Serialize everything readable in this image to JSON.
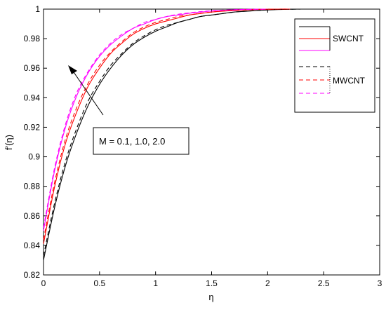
{
  "chart_data": {
    "type": "line",
    "title": "",
    "xlabel": "η",
    "ylabel": "f′(η)",
    "xlim": [
      0,
      3
    ],
    "ylim": [
      0.82,
      1.0
    ],
    "xticks": [
      0,
      0.5,
      1,
      1.5,
      2,
      2.5,
      3
    ],
    "xtick_labels": [
      "0",
      "0.5",
      "1",
      "1.5",
      "2",
      "2.5",
      "3"
    ],
    "yticks": [
      0.82,
      0.84,
      0.86,
      0.88,
      0.9,
      0.92,
      0.94,
      0.96,
      0.98,
      1.0
    ],
    "ytick_labels": [
      "0.82",
      "0.84",
      "0.86",
      "0.88",
      "0.9",
      "0.92",
      "0.94",
      "0.96",
      "0.98",
      "1"
    ],
    "grid": false,
    "legend_position": "top-right",
    "legend_entries": [
      "SWCNT",
      "MWCNT"
    ],
    "annotation": "M = 0.1, 1.0, 2.0",
    "series": [
      {
        "group": "SWCNT",
        "style": "solid",
        "color": "#000000",
        "M": 0.1,
        "x": [
          0,
          0.1,
          0.2,
          0.3,
          0.4,
          0.5,
          0.6,
          0.7,
          0.8,
          0.9,
          1.0,
          1.1,
          1.2,
          1.3,
          1.4,
          1.5,
          1.6,
          1.7,
          1.8,
          1.9,
          2.0,
          2.1,
          2.2,
          2.3
        ],
        "y": [
          0.83,
          0.866,
          0.895,
          0.917,
          0.935,
          0.949,
          0.96,
          0.969,
          0.976,
          0.981,
          0.985,
          0.988,
          0.991,
          0.993,
          0.995,
          0.996,
          0.997,
          0.998,
          0.9985,
          0.999,
          0.9994,
          0.9997,
          0.9999,
          1.0
        ]
      },
      {
        "group": "SWCNT",
        "style": "solid",
        "color": "#ff0000",
        "M": 1.0,
        "x": [
          0,
          0.1,
          0.2,
          0.3,
          0.4,
          0.5,
          0.6,
          0.7,
          0.8,
          0.9,
          1.0,
          1.1,
          1.2,
          1.3,
          1.4,
          1.5,
          1.6,
          1.7,
          1.8,
          1.9,
          2.0,
          2.1,
          2.2
        ],
        "y": [
          0.841,
          0.88,
          0.91,
          0.931,
          0.948,
          0.96,
          0.97,
          0.977,
          0.983,
          0.987,
          0.99,
          0.992,
          0.994,
          0.996,
          0.997,
          0.998,
          0.9986,
          0.999,
          0.9994,
          0.9997,
          0.9999,
          1.0,
          1.0
        ]
      },
      {
        "group": "SWCNT",
        "style": "solid",
        "color": "#ff00ff",
        "M": 2.0,
        "x": [
          0,
          0.1,
          0.2,
          0.3,
          0.4,
          0.5,
          0.6,
          0.7,
          0.8,
          0.9,
          1.0,
          1.1,
          1.2,
          1.3,
          1.4,
          1.5,
          1.6,
          1.7,
          1.8,
          1.9,
          2.0
        ],
        "y": [
          0.85,
          0.891,
          0.921,
          0.942,
          0.957,
          0.968,
          0.976,
          0.982,
          0.987,
          0.99,
          0.993,
          0.995,
          0.996,
          0.9972,
          0.998,
          0.9987,
          0.9992,
          0.9995,
          0.9998,
          0.9999,
          1.0
        ]
      },
      {
        "group": "MWCNT",
        "style": "dashed",
        "color": "#000000",
        "M": 0.1,
        "x": [
          0,
          0.1,
          0.2,
          0.3,
          0.4,
          0.5,
          0.6,
          0.7,
          0.8,
          0.9,
          1.0,
          1.1,
          1.2,
          1.3,
          1.4,
          1.5,
          1.6,
          1.7,
          1.8,
          1.9,
          2.0,
          2.1,
          2.2,
          2.3
        ],
        "y": [
          0.833,
          0.869,
          0.898,
          0.92,
          0.938,
          0.951,
          0.962,
          0.97,
          0.977,
          0.982,
          0.986,
          0.989,
          0.991,
          0.993,
          0.995,
          0.996,
          0.997,
          0.998,
          0.9986,
          0.9991,
          0.9995,
          0.9998,
          0.9999,
          1.0
        ]
      },
      {
        "group": "MWCNT",
        "style": "dashed",
        "color": "#ff0000",
        "M": 1.0,
        "x": [
          0,
          0.1,
          0.2,
          0.3,
          0.4,
          0.5,
          0.6,
          0.7,
          0.8,
          0.9,
          1.0,
          1.1,
          1.2,
          1.3,
          1.4,
          1.5,
          1.6,
          1.7,
          1.8,
          1.9,
          2.0,
          2.1,
          2.2
        ],
        "y": [
          0.844,
          0.883,
          0.913,
          0.934,
          0.95,
          0.962,
          0.971,
          0.978,
          0.984,
          0.988,
          0.991,
          0.993,
          0.995,
          0.996,
          0.9972,
          0.998,
          0.9987,
          0.9992,
          0.9995,
          0.9998,
          0.9999,
          1.0,
          1.0
        ]
      },
      {
        "group": "MWCNT",
        "style": "dashed",
        "color": "#ff00ff",
        "M": 2.0,
        "x": [
          0,
          0.1,
          0.2,
          0.3,
          0.4,
          0.5,
          0.6,
          0.7,
          0.8,
          0.9,
          1.0,
          1.1,
          1.2,
          1.3,
          1.4,
          1.5,
          1.6,
          1.7,
          1.8,
          1.9,
          2.0
        ],
        "y": [
          0.852,
          0.893,
          0.923,
          0.944,
          0.958,
          0.969,
          0.977,
          0.983,
          0.987,
          0.991,
          0.993,
          0.995,
          0.9965,
          0.9975,
          0.9983,
          0.9989,
          0.9993,
          0.9996,
          0.9998,
          0.9999,
          1.0
        ]
      }
    ]
  }
}
